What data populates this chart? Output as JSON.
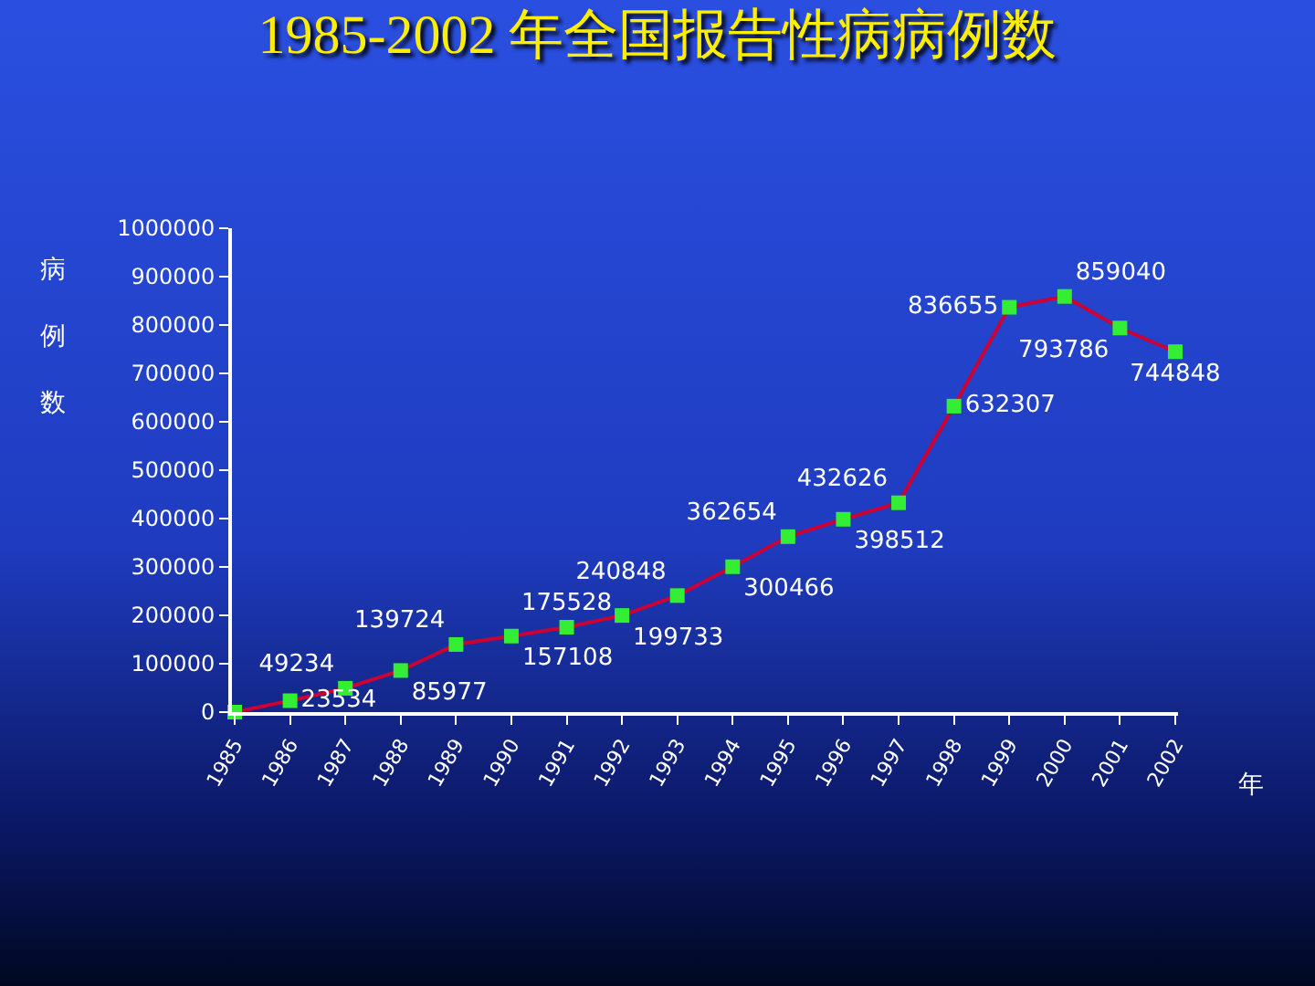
{
  "chart_data": {
    "type": "line",
    "title": "1985-2002 年全国报告性病病例数",
    "ylabel": "病例数",
    "xlabel": "年",
    "categories": [
      "1985",
      "1986",
      "1987",
      "1988",
      "1989",
      "1990",
      "1991",
      "1992",
      "1993",
      "1994",
      "1995",
      "1996",
      "1997",
      "1998",
      "1999",
      "2000",
      "2001",
      "2002"
    ],
    "series": [
      {
        "color": "#cc0033",
        "values": [
          0,
          23534,
          49234,
          85977,
          139724,
          157108,
          175528,
          199733,
          240848,
          300466,
          362654,
          398512,
          432626,
          632307,
          836655,
          859040,
          793786,
          744848
        ],
        "value_labels": [
          null,
          "23534",
          "49234",
          "85977",
          "139724",
          "157108",
          "175528",
          "199733",
          "240848",
          "300466",
          "362654",
          "398512",
          "432626",
          "632307",
          "836655",
          "859040",
          "793786",
          "744848"
        ]
      }
    ],
    "ylim": [
      0,
      1000000
    ],
    "yticks": [
      0,
      100000,
      200000,
      300000,
      400000,
      500000,
      600000,
      700000,
      800000,
      900000,
      1000000
    ],
    "grid": false,
    "marker": "square",
    "line_style": "solid"
  }
}
